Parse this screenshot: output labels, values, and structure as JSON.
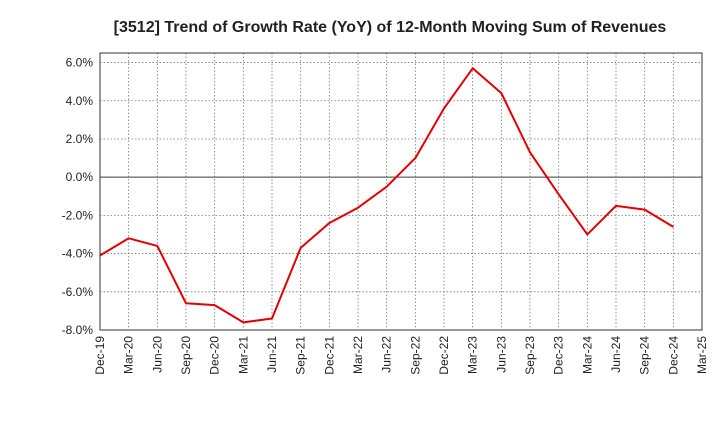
{
  "chart_data": {
    "type": "line",
    "title": "[3512]  Trend of Growth Rate (YoY) of 12-Month Moving Sum of Revenues",
    "xlabel": "",
    "ylabel": "",
    "ylim": [
      -8.0,
      6.5
    ],
    "yticks": [
      "6.0%",
      "4.0%",
      "2.0%",
      "0.0%",
      "-2.0%",
      "-4.0%",
      "-6.0%",
      "-8.0%"
    ],
    "ytick_values": [
      6,
      4,
      2,
      0,
      -2,
      -4,
      -6,
      -8
    ],
    "x_tick_labels": [
      "Dec-19",
      "Mar-20",
      "Jun-20",
      "Sep-20",
      "Dec-20",
      "Mar-21",
      "Jun-21",
      "Sep-21",
      "Dec-21",
      "Mar-22",
      "Jun-22",
      "Sep-22",
      "Dec-22",
      "Mar-23",
      "Jun-23",
      "Sep-23",
      "Dec-23",
      "Mar-24",
      "Jun-24",
      "Sep-24",
      "Dec-24",
      "Mar-25"
    ],
    "grid": true,
    "zero_line": true,
    "series": [
      {
        "color": "#e60000",
        "x": [
          "Dec-19",
          "Mar-20",
          "Jun-20",
          "Sep-20",
          "Dec-20",
          "Mar-21",
          "Jun-21",
          "Sep-21",
          "Dec-21",
          "Mar-22",
          "Jun-22",
          "Sep-22",
          "Dec-22",
          "Mar-23",
          "Jun-23",
          "Sep-23",
          "Dec-23",
          "Mar-24",
          "Jun-24",
          "Sep-24",
          "Dec-24"
        ],
        "values": [
          -4.1,
          -3.2,
          -3.6,
          -6.6,
          -6.7,
          -7.6,
          -7.4,
          -3.7,
          -2.4,
          -1.6,
          -0.5,
          1.0,
          3.6,
          5.7,
          4.4,
          1.3,
          -0.9,
          -3.0,
          -1.5,
          -1.7,
          -2.6
        ]
      }
    ]
  }
}
